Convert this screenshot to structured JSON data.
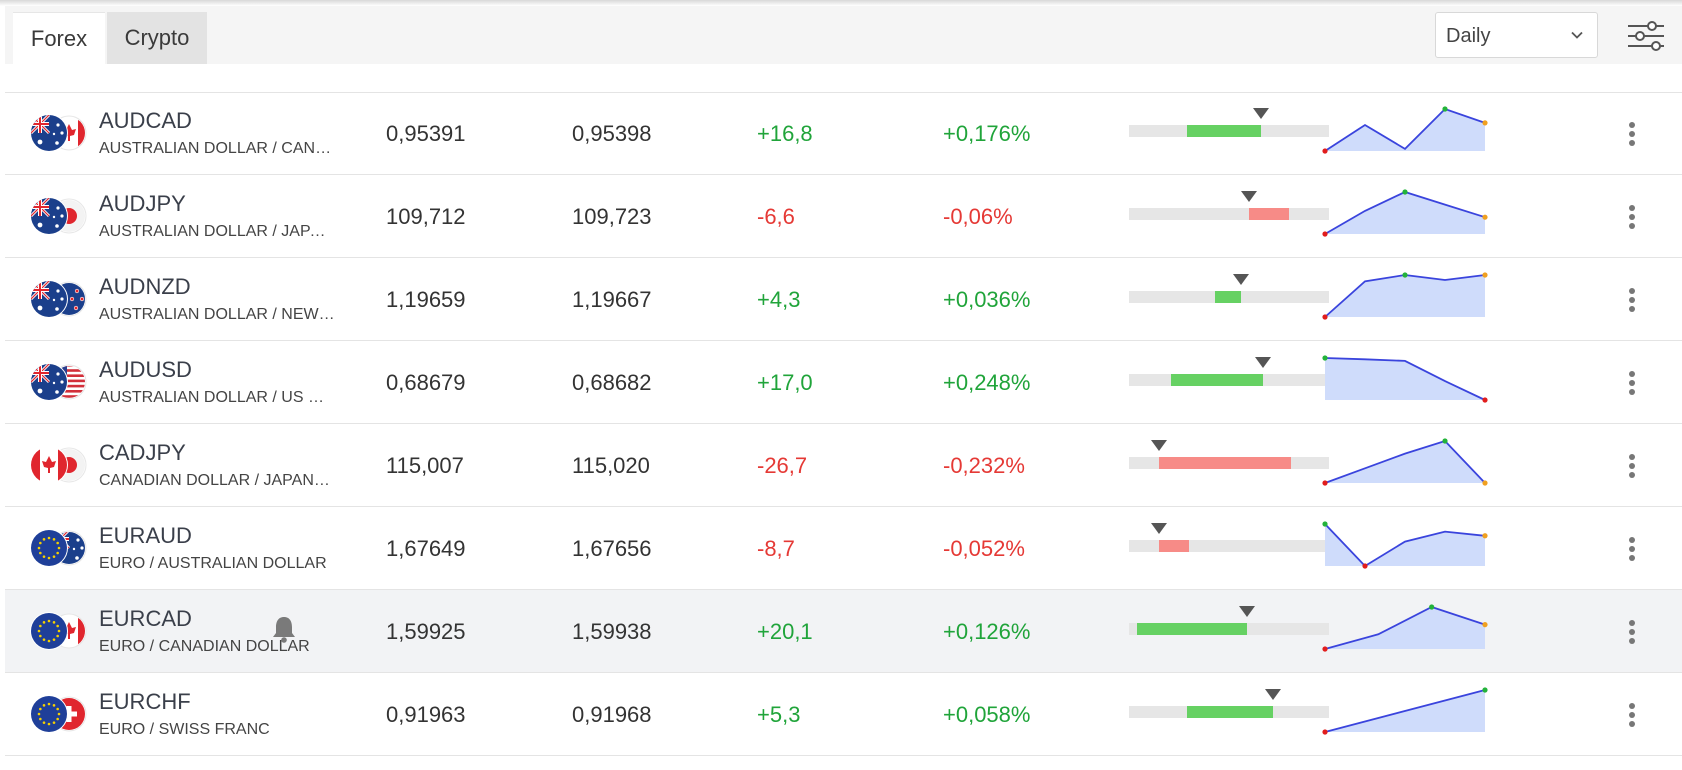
{
  "tabs": [
    {
      "label": "Forex",
      "active": true
    },
    {
      "label": "Crypto",
      "active": false
    }
  ],
  "period_select": {
    "value": "Daily"
  },
  "icons": {
    "period_chevron": "chevron-down-icon",
    "filters": "sliders-icon",
    "row_menu": "more-vertical-icon",
    "alert": "bell-icon"
  },
  "colors": {
    "positive": "#20a43a",
    "negative": "#e53935",
    "bar_positive": "#66d163",
    "bar_negative": "#f78b87",
    "sparkline_line": "#3a44dd",
    "sparkline_fill": "#cfdcfb"
  },
  "rows": [
    {
      "symbol": "AUDCAD",
      "name": "AUSTRALIAN DOLLAR / CANAD...",
      "bid": "0,95391",
      "ask": "0,95398",
      "change": "+16,8",
      "change_pct": "+0,176%",
      "direction": "up",
      "flags": [
        "au",
        "ca"
      ],
      "range": {
        "bar_from": 0.29,
        "bar_to": 0.66,
        "marker": 0.66
      },
      "spark": [
        0.0,
        0.62,
        0.05,
        1.0,
        0.67
      ],
      "highlighted": false,
      "has_alert": false
    },
    {
      "symbol": "AUDJPY",
      "name": "AUSTRALIAN DOLLAR / JAPAN...",
      "bid": "109,712",
      "ask": "109,723",
      "change": "-6,6",
      "change_pct": "-0,06%",
      "direction": "down",
      "flags": [
        "au",
        "jp"
      ],
      "range": {
        "bar_from": 0.6,
        "bar_to": 0.8,
        "marker": 0.6
      },
      "spark": [
        0.0,
        0.55,
        1.0,
        0.7,
        0.4
      ],
      "highlighted": false,
      "has_alert": false
    },
    {
      "symbol": "AUDNZD",
      "name": "AUSTRALIAN DOLLAR / NEW Z...",
      "bid": "1,19659",
      "ask": "1,19667",
      "change": "+4,3",
      "change_pct": "+0,036%",
      "direction": "up",
      "flags": [
        "au",
        "nz"
      ],
      "range": {
        "bar_from": 0.43,
        "bar_to": 0.56,
        "marker": 0.56
      },
      "spark": [
        0.0,
        0.85,
        1.0,
        0.88,
        1.0
      ],
      "highlighted": false,
      "has_alert": false
    },
    {
      "symbol": "AUDUSD",
      "name": "AUSTRALIAN DOLLAR / US DOL...",
      "bid": "0,68679",
      "ask": "0,68682",
      "change": "+17,0",
      "change_pct": "+0,248%",
      "direction": "up",
      "flags": [
        "au",
        "us"
      ],
      "range": {
        "bar_from": 0.21,
        "bar_to": 0.67,
        "marker": 0.67
      },
      "spark": [
        1.0,
        0.97,
        0.93,
        0.45,
        0.0
      ],
      "highlighted": false,
      "has_alert": false
    },
    {
      "symbol": "CADJPY",
      "name": "CANADIAN DOLLAR / JAPANES...",
      "bid": "115,007",
      "ask": "115,020",
      "change": "-26,7",
      "change_pct": "-0,232%",
      "direction": "down",
      "flags": [
        "ca",
        "jp"
      ],
      "range": {
        "bar_from": 0.15,
        "bar_to": 0.81,
        "marker": 0.15
      },
      "spark": [
        0.0,
        0.35,
        0.7,
        1.0,
        0.0
      ],
      "highlighted": false,
      "has_alert": false
    },
    {
      "symbol": "EURAUD",
      "name": "EURO / AUSTRALIAN DOLLAR",
      "bid": "1,67649",
      "ask": "1,67656",
      "change": "-8,7",
      "change_pct": "-0,052%",
      "direction": "down",
      "flags": [
        "eu",
        "au"
      ],
      "range": {
        "bar_from": 0.15,
        "bar_to": 0.3,
        "marker": 0.15
      },
      "spark": [
        1.0,
        0.0,
        0.58,
        0.82,
        0.72
      ],
      "highlighted": false,
      "has_alert": false
    },
    {
      "symbol": "EURCAD",
      "name": "EURO / CANADIAN DOLLAR",
      "bid": "1,59925",
      "ask": "1,59938",
      "change": "+20,1",
      "change_pct": "+0,126%",
      "direction": "up",
      "flags": [
        "eu",
        "ca"
      ],
      "range": {
        "bar_from": 0.04,
        "bar_to": 0.59,
        "marker": 0.59
      },
      "spark": [
        0.0,
        0.35,
        1.0,
        0.58
      ],
      "highlighted": true,
      "has_alert": true
    },
    {
      "symbol": "EURCHF",
      "name": "EURO / SWISS FRANC",
      "bid": "0,91963",
      "ask": "0,91968",
      "change": "+5,3",
      "change_pct": "+0,058%",
      "direction": "up",
      "flags": [
        "eu",
        "ch"
      ],
      "range": {
        "bar_from": 0.29,
        "bar_to": 0.72,
        "marker": 0.72
      },
      "spark": [
        0.0,
        1.0
      ],
      "highlighted": false,
      "has_alert": false
    }
  ]
}
